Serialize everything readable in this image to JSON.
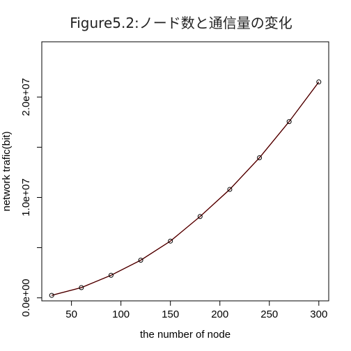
{
  "chart_data": {
    "type": "line",
    "title": "Figure5.2:ノード数と通信量の変化",
    "xlabel": "the number of node",
    "ylabel": "network trafic(bit)",
    "xlim": [
      20,
      310
    ],
    "ylim": [
      -300000,
      25500000
    ],
    "x_ticks": [
      50,
      100,
      150,
      200,
      250,
      300
    ],
    "x_tick_labels": [
      "50",
      "100",
      "150",
      "200",
      "250",
      "300"
    ],
    "y_ticks": [
      0,
      5000000,
      10000000,
      15000000,
      20000000
    ],
    "y_tick_labels": [
      "0.0e+00",
      "",
      "1.0e+07",
      "",
      "2.0e+07"
    ],
    "series": [
      {
        "x": [
          30,
          60,
          90,
          120,
          150,
          180,
          210,
          240,
          270,
          300
        ],
        "values": [
          250000,
          1020000,
          2250000,
          3750000,
          5650000,
          8100000,
          10800000,
          13950000,
          17550000,
          21500000
        ],
        "marker": "open-circle",
        "line_color": "#000000",
        "fit_color": "#cc0000"
      }
    ],
    "grid": false,
    "legend": "none"
  }
}
